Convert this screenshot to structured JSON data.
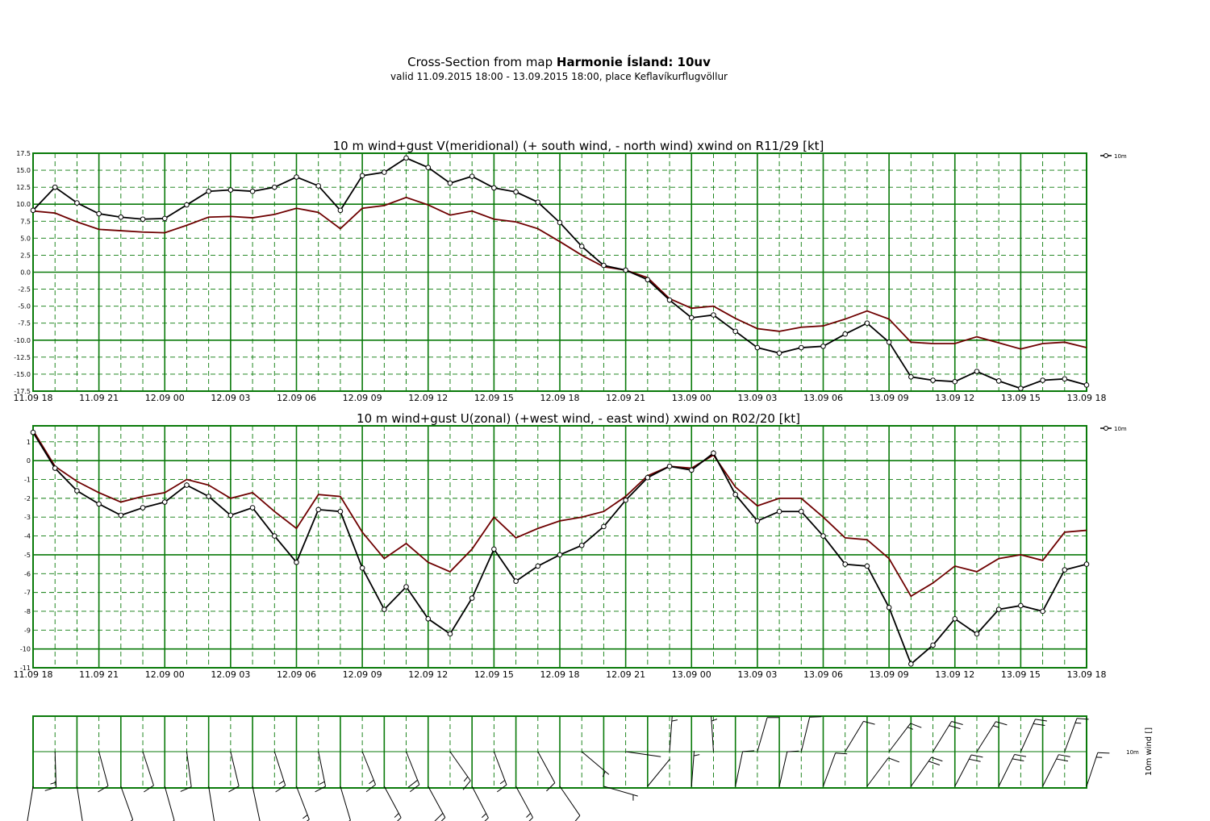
{
  "header": {
    "title_prefix": "Cross-Section from map ",
    "title_bold": "Harmonie Ísland: 10uv",
    "subtitle": "valid 11.09.2015 18:00 - 13.09.2015 18:00, place Keflavíkurflugvöllur"
  },
  "colors": {
    "grid": "#0a7a0a",
    "line_main": "#000000",
    "line_gust": "#6e0000"
  },
  "time_labels": [
    "11.09 18",
    "11.09 21",
    "12.09 00",
    "12.09 03",
    "12.09 06",
    "12.09 09",
    "12.09 12",
    "12.09 15",
    "12.09 18",
    "12.09 21",
    "13.09 00",
    "13.09 03",
    "13.09 06",
    "13.09 09",
    "13.09 12",
    "13.09 15",
    "13.09 18"
  ],
  "chart_data": [
    {
      "type": "line",
      "title": "10 m wind+gust V(meridional) (+ south wind, - north wind) xwind on R11/29 [kt]",
      "x_range": [
        "11.09.2015 18:00",
        "13.09.2015 18:00"
      ],
      "x_step_hours": 1,
      "ylim": [
        -17.5,
        17.5
      ],
      "yticks": [
        17.5,
        15.0,
        12.5,
        10.0,
        7.5,
        5.0,
        2.5,
        0.0,
        -2.5,
        -5.0,
        -7.5,
        -10.0,
        -12.5,
        -15.0,
        -17.5
      ],
      "ytick_labels": [
        "17.5",
        "15.0",
        "12.5",
        "10.0",
        "7.5",
        "5.0",
        "2.5",
        "0.0",
        "-2.5",
        "-5.0",
        "-7.5",
        "-10.0",
        "-12.5",
        "-15.0",
        "-17.5"
      ],
      "legend": "10m",
      "legend_position": "top-right",
      "grid": true,
      "series": [
        {
          "name": "10m",
          "values": [
            9.1,
            12.5,
            10.2,
            8.6,
            8.1,
            7.8,
            7.9,
            9.9,
            11.9,
            12.1,
            11.9,
            12.5,
            14.0,
            12.7,
            9.1,
            14.2,
            14.7,
            16.8,
            15.4,
            13.1,
            14.1,
            12.4,
            11.8,
            10.3,
            7.3,
            3.8,
            1.0,
            0.3,
            -1.1,
            -4.1,
            -6.7,
            -6.3,
            -8.7,
            -11.1,
            -11.9,
            -11.1,
            -10.9,
            -9.1,
            -7.5,
            -10.3,
            -15.4,
            -15.9,
            -16.1,
            -14.6,
            -16.0,
            -17.1,
            -15.9,
            -15.7,
            -16.6
          ]
        },
        {
          "values": [
            9.0,
            8.7,
            7.4,
            6.3,
            6.1,
            5.9,
            5.8,
            6.9,
            8.1,
            8.2,
            8.0,
            8.5,
            9.4,
            8.8,
            6.4,
            9.4,
            9.8,
            11.0,
            9.9,
            8.4,
            9.0,
            7.8,
            7.4,
            6.4,
            4.5,
            2.5,
            0.8,
            0.3,
            -0.8,
            -3.9,
            -5.3,
            -5.0,
            -6.8,
            -8.3,
            -8.7,
            -8.1,
            -7.9,
            -6.9,
            -5.7,
            -6.9,
            -10.3,
            -10.5,
            -10.5,
            -9.5,
            -10.4,
            -11.3,
            -10.5,
            -10.3,
            -11.1
          ]
        }
      ]
    },
    {
      "type": "line",
      "title": "10 m wind+gust U(zonal) (+west wind, - east wind) xwind on R02/20 [kt]",
      "x_range": [
        "11.09.2015 18:00",
        "13.09.2015 18:00"
      ],
      "x_step_hours": 1,
      "ylim": [
        -11,
        1.85
      ],
      "yticks": [
        1,
        0,
        -1,
        -2,
        -3,
        -4,
        -5,
        -6,
        -7,
        -8,
        -9,
        -10,
        -11
      ],
      "ytick_labels": [
        "1",
        "0",
        "-1",
        "-2",
        "-3",
        "-4",
        "-5",
        "-6",
        "-7",
        "-8",
        "-9",
        "-10",
        "-11"
      ],
      "legend": "10m",
      "legend_position": "top-right",
      "grid": true,
      "series": [
        {
          "name": "10m",
          "values": [
            1.5,
            -0.4,
            -1.6,
            -2.3,
            -2.9,
            -2.5,
            -2.2,
            -1.3,
            -1.9,
            -2.9,
            -2.5,
            -4.0,
            -5.4,
            -2.6,
            -2.7,
            -5.7,
            -7.9,
            -6.7,
            -8.4,
            -9.2,
            -7.3,
            -4.7,
            -6.4,
            -5.6,
            -5.0,
            -4.5,
            -3.5,
            -2.1,
            -0.9,
            -0.3,
            -0.5,
            0.4,
            -1.8,
            -3.2,
            -2.7,
            -2.7,
            -4.0,
            -5.5,
            -5.6,
            -7.8,
            -10.8,
            -9.8,
            -8.4,
            -9.2,
            -7.9,
            -7.7,
            -8.0,
            -5.8,
            -5.5
          ]
        },
        {
          "values": [
            1.6,
            -0.3,
            -1.1,
            -1.7,
            -2.2,
            -1.9,
            -1.7,
            -1.0,
            -1.3,
            -2.0,
            -1.7,
            -2.7,
            -3.6,
            -1.8,
            -1.9,
            -3.8,
            -5.2,
            -4.4,
            -5.4,
            -5.9,
            -4.7,
            -3.0,
            -4.1,
            -3.6,
            -3.2,
            -3.0,
            -2.7,
            -1.9,
            -0.8,
            -0.3,
            -0.4,
            0.3,
            -1.4,
            -2.4,
            -2.0,
            -2.0,
            -3.0,
            -4.1,
            -4.2,
            -5.2,
            -7.2,
            -6.5,
            -5.6,
            -5.9,
            -5.2,
            -5.0,
            -5.3,
            -3.8,
            -3.7
          ]
        }
      ]
    },
    {
      "type": "barbs",
      "xlabel": "10m wind []",
      "row_label": "10m",
      "x_step_hours": 1,
      "grid": true,
      "u_kt": [
        1.5,
        -0.4,
        -1.6,
        -2.3,
        -2.9,
        -2.5,
        -2.2,
        -1.3,
        -1.9,
        -2.9,
        -2.5,
        -4.0,
        -5.4,
        -2.6,
        -2.7,
        -5.7,
        -7.9,
        -6.7,
        -8.4,
        -9.2,
        -7.3,
        -4.7,
        -6.4,
        -5.6,
        -5.0,
        -4.5,
        -3.5,
        -2.1,
        -0.9,
        -0.3,
        -0.5,
        0.4,
        -1.8,
        -3.2,
        -2.7,
        -2.7,
        -4.0,
        -5.5,
        -5.6,
        -7.8,
        -10.8,
        -9.8,
        -8.4,
        -9.2,
        -7.9,
        -7.7,
        -8.0,
        -5.8,
        -5.5
      ],
      "v_kt": [
        9.1,
        12.5,
        10.2,
        8.6,
        8.1,
        7.8,
        7.9,
        9.9,
        11.9,
        12.1,
        11.9,
        12.5,
        14.0,
        12.7,
        9.1,
        14.2,
        14.7,
        16.8,
        15.4,
        13.1,
        14.1,
        12.4,
        11.8,
        10.3,
        7.3,
        3.8,
        1.0,
        0.3,
        -1.1,
        -4.1,
        -6.7,
        -6.3,
        -8.7,
        -11.1,
        -11.9,
        -11.1,
        -10.9,
        -9.1,
        -7.5,
        -10.3,
        -15.4,
        -15.9,
        -16.1,
        -14.6,
        -16.0,
        -17.1,
        -15.9,
        -15.7,
        -16.6
      ]
    }
  ]
}
